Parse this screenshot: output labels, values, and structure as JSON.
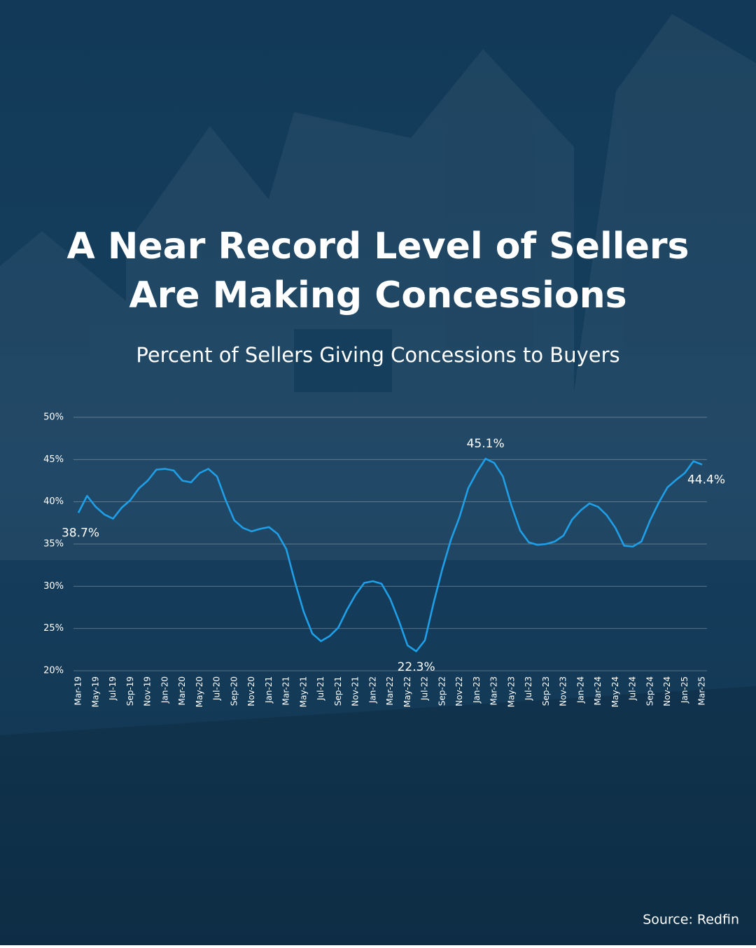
{
  "chart_data": {
    "type": "line",
    "title": [
      "A Near Record Level of Sellers",
      "Are Making Concessions"
    ],
    "subtitle": "Percent of Sellers Giving Concessions to Buyers",
    "source": "Source: Redfin",
    "color": "#1e9fe8",
    "grid": true,
    "ylim": [
      20,
      50
    ],
    "yticks": [
      {
        "value": 20,
        "label": "20%"
      },
      {
        "value": 25,
        "label": "25%"
      },
      {
        "value": 30,
        "label": "30%"
      },
      {
        "value": 35,
        "label": "35%"
      },
      {
        "value": 40,
        "label": "40%"
      },
      {
        "value": 45,
        "label": "45%"
      },
      {
        "value": 50,
        "label": "50%"
      }
    ],
    "categories": [
      "Mar-19",
      null,
      "May-19",
      null,
      "Jul-19",
      null,
      "Sep-19",
      null,
      "Nov-19",
      null,
      "Jan-20",
      null,
      "Mar-20",
      null,
      "May-20",
      null,
      "Jul-20",
      null,
      "Sep-20",
      null,
      "Nov-20",
      null,
      "Jan-21",
      null,
      "Mar-21",
      null,
      "May-21",
      null,
      "Jul-21",
      null,
      "Sep-21",
      null,
      "Nov-21",
      null,
      "Jan-22",
      null,
      "Mar-22",
      null,
      "May-22",
      null,
      "Jul-22",
      null,
      "Sep-22",
      null,
      "Nov-22",
      null,
      "Jan-23",
      null,
      "Mar-23",
      null,
      "May-23",
      null,
      "Jul-23",
      null,
      "Sep-23",
      null,
      "Nov-23",
      null,
      "Jan-24",
      null,
      "Mar-24",
      null,
      "May-24",
      null,
      "Jul-24",
      null,
      "Sep-24",
      null,
      "Nov-24",
      null,
      "Jan-25",
      null,
      "Mar-25"
    ],
    "values": [
      38.7,
      40.7,
      39.4,
      38.5,
      38.0,
      39.3,
      40.2,
      41.6,
      42.5,
      43.8,
      43.9,
      43.7,
      42.5,
      42.3,
      43.4,
      43.9,
      43.0,
      40.2,
      37.8,
      36.9,
      36.5,
      36.8,
      37.0,
      36.2,
      34.4,
      30.5,
      27.0,
      24.4,
      23.5,
      24.1,
      25.1,
      27.2,
      29.0,
      30.4,
      30.6,
      30.3,
      28.5,
      25.9,
      23.0,
      22.3,
      23.6,
      28.0,
      32.0,
      35.5,
      38.2,
      41.6,
      43.5,
      45.1,
      44.6,
      43.0,
      39.5,
      36.6,
      35.2,
      34.9,
      35.0,
      35.3,
      36.0,
      37.9,
      39.0,
      39.8,
      39.4,
      38.4,
      36.9,
      34.8,
      34.7,
      35.3,
      37.8,
      39.9,
      41.7,
      42.6,
      43.4,
      44.8,
      44.4
    ],
    "value_labels": [
      "38.7%",
      null,
      null,
      null,
      null,
      null,
      null,
      null,
      null,
      null,
      null,
      null,
      null,
      null,
      null,
      null,
      null,
      null,
      null,
      null,
      null,
      null,
      null,
      null,
      null,
      null,
      null,
      null,
      null,
      null,
      null,
      null,
      null,
      null,
      null,
      null,
      null,
      null,
      null,
      "22.3%",
      null,
      null,
      null,
      null,
      null,
      null,
      null,
      "45.1%",
      null,
      null,
      null,
      null,
      null,
      null,
      null,
      null,
      null,
      null,
      null,
      null,
      null,
      null,
      null,
      null,
      null,
      null,
      null,
      null,
      null,
      null,
      null,
      null,
      "44.4%"
    ]
  }
}
